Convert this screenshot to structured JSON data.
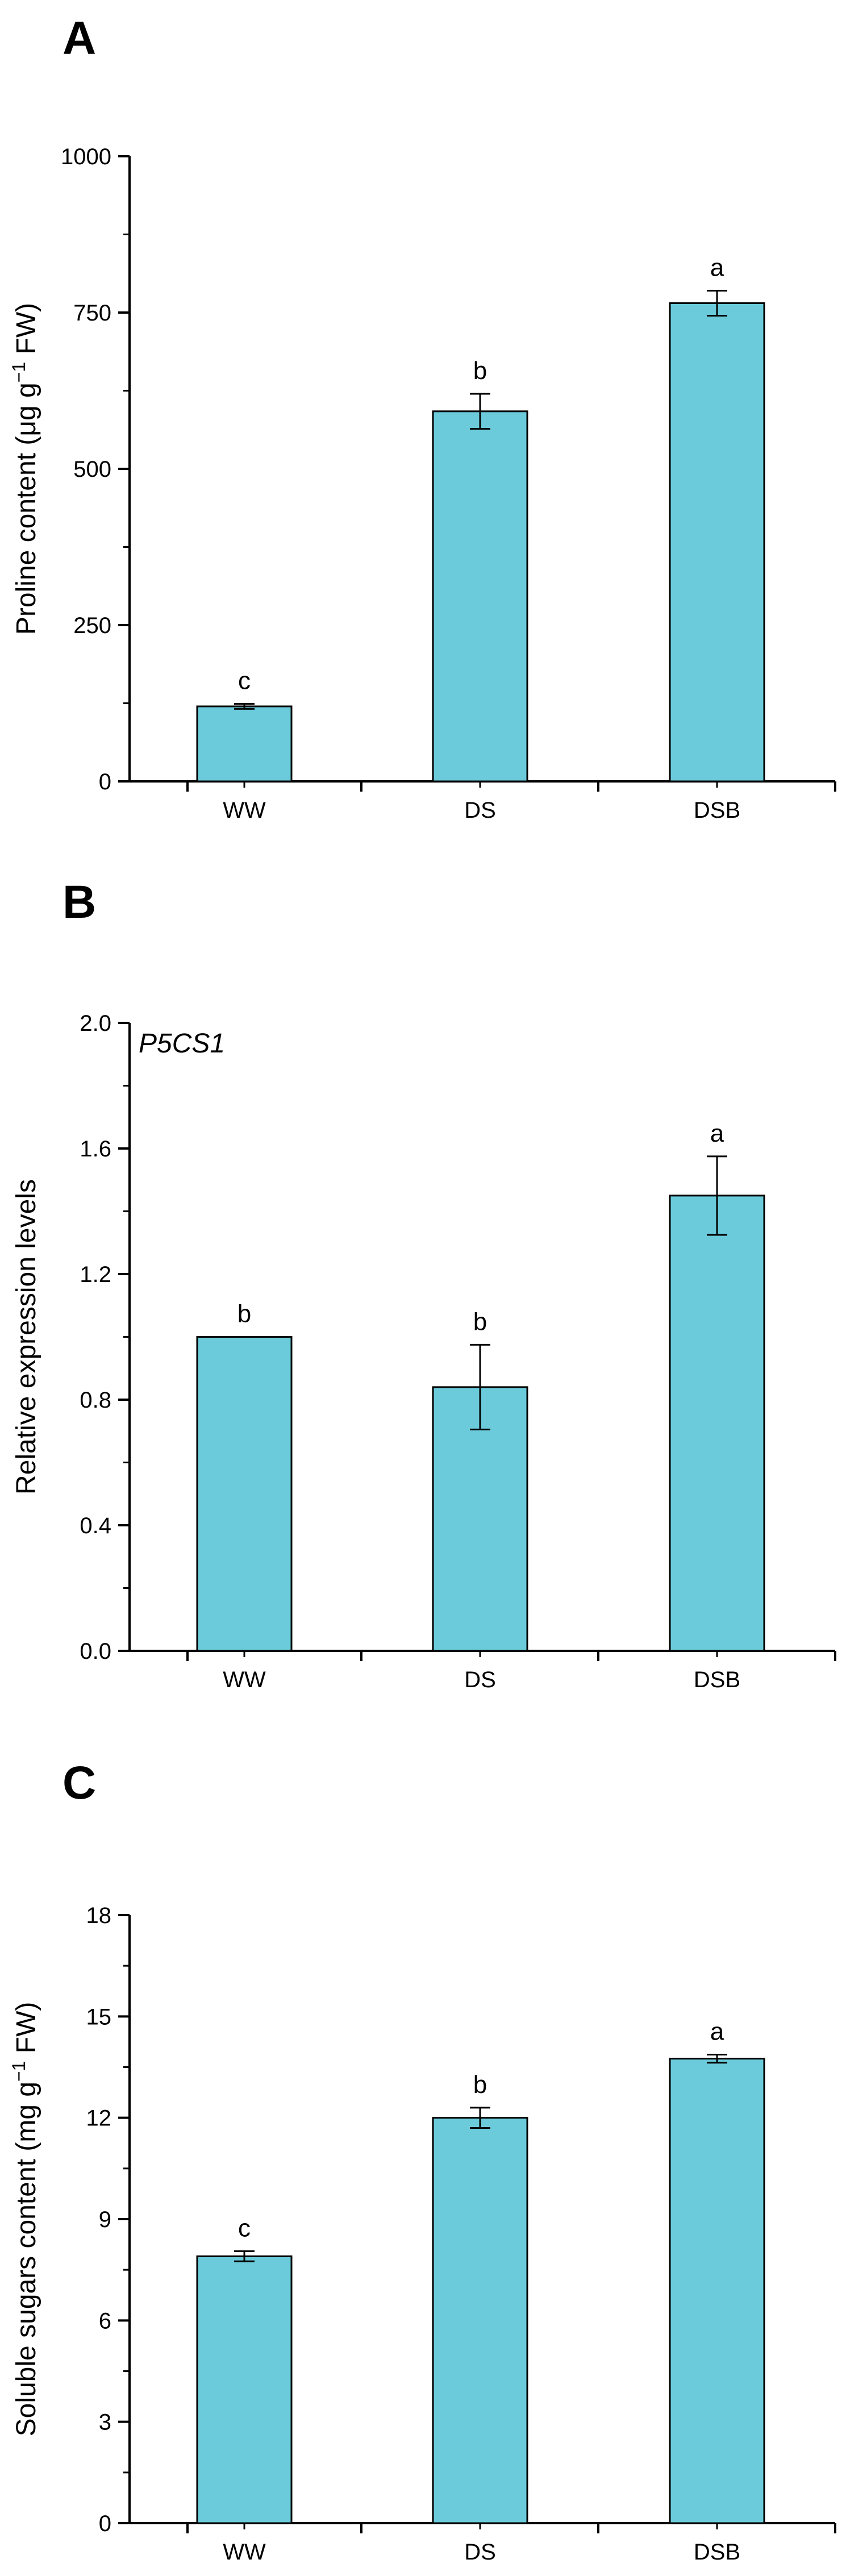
{
  "chart_data": [
    {
      "panel": "A",
      "type": "bar",
      "categories": [
        "WW",
        "DS",
        "DSB"
      ],
      "values": [
        120,
        592,
        765
      ],
      "errors": [
        4,
        28,
        20
      ],
      "significance": [
        "c",
        "b",
        "a"
      ],
      "ylabel": "Proline content (μg g",
      "ylabel_sup": "−1",
      "ylabel_end": " FW)",
      "ylim": [
        0,
        1000
      ],
      "yticks": [
        0,
        250,
        500,
        750,
        1000
      ],
      "ytick_labels": [
        "0",
        "250",
        "500",
        "750",
        "1000"
      ],
      "annotation": "",
      "grid": false,
      "bar_color": "#6bcbdb"
    },
    {
      "panel": "B",
      "type": "bar",
      "categories": [
        "WW",
        "DS",
        "DSB"
      ],
      "values": [
        1.0,
        0.84,
        1.45
      ],
      "errors": [
        0,
        0.135,
        0.125
      ],
      "significance": [
        "b",
        "b",
        "a"
      ],
      "ylabel": "Relative expression levels",
      "ylabel_sup": "",
      "ylabel_end": "",
      "ylim": [
        0,
        2.0
      ],
      "yticks": [
        0,
        0.4,
        0.8,
        1.2,
        1.6,
        2.0
      ],
      "ytick_labels": [
        "0.0",
        "0.4",
        "0.8",
        "1.2",
        "1.6",
        "2.0"
      ],
      "annotation": "P5CS1",
      "grid": false,
      "bar_color": "#6bcbdb"
    },
    {
      "panel": "C",
      "type": "bar",
      "categories": [
        "WW",
        "DS",
        "DSB"
      ],
      "values": [
        7.9,
        12.0,
        13.75
      ],
      "errors": [
        0.15,
        0.3,
        0.12
      ],
      "significance": [
        "c",
        "b",
        "a"
      ],
      "ylabel": "Soluble sugars content (mg g",
      "ylabel_sup": "−1",
      "ylabel_end": " FW)",
      "ylim": [
        0,
        18
      ],
      "yticks": [
        0,
        3,
        6,
        9,
        12,
        15,
        18
      ],
      "ytick_labels": [
        "0",
        "3",
        "6",
        "9",
        "12",
        "15",
        "18"
      ],
      "annotation": "",
      "grid": false,
      "bar_color": "#6bcbdb"
    }
  ]
}
